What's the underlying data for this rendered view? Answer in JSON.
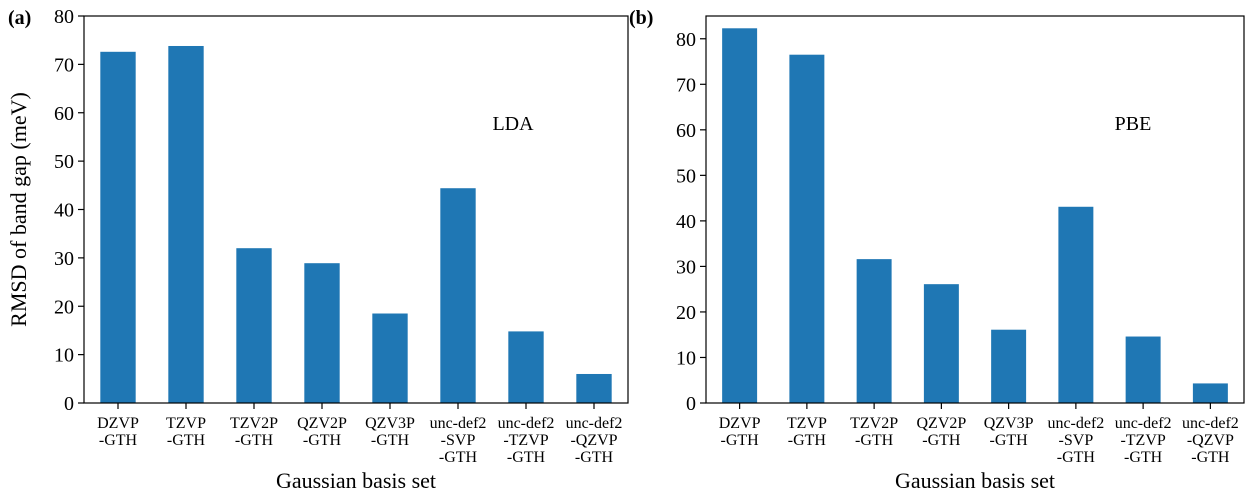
{
  "chart_data": [
    {
      "type": "bar",
      "panel_label": "(a)",
      "annotation": "LDA",
      "categories": [
        [
          "DZVP",
          "-GTH"
        ],
        [
          "TZVP",
          "-GTH"
        ],
        [
          "TZV2P",
          "-GTH"
        ],
        [
          "QZV2P",
          "-GTH"
        ],
        [
          "QZV3P",
          "-GTH"
        ],
        [
          "unc-def2",
          "-SVP",
          "-GTH"
        ],
        [
          "unc-def2",
          "-TZVP",
          "-GTH"
        ],
        [
          "unc-def2",
          "-QZVP",
          "-GTH"
        ]
      ],
      "values": [
        72.6,
        73.8,
        32.0,
        28.9,
        18.5,
        44.4,
        14.8,
        6.0
      ],
      "xlabel": "Gaussian basis set",
      "ylabel": "RMSD of band gap (meV)",
      "ylim": [
        0,
        80
      ],
      "yticks": [
        0,
        10,
        20,
        30,
        40,
        50,
        60,
        70,
        80
      ],
      "bar_color": "#1f77b4",
      "grid": false
    },
    {
      "type": "bar",
      "panel_label": "(b)",
      "annotation": "PBE",
      "categories": [
        [
          "DZVP",
          "-GTH"
        ],
        [
          "TZVP",
          "-GTH"
        ],
        [
          "TZV2P",
          "-GTH"
        ],
        [
          "QZV2P",
          "-GTH"
        ],
        [
          "QZV3P",
          "-GTH"
        ],
        [
          "unc-def2",
          "-SVP",
          "-GTH"
        ],
        [
          "unc-def2",
          "-TZVP",
          "-GTH"
        ],
        [
          "unc-def2",
          "-QZVP",
          "-GTH"
        ]
      ],
      "values": [
        82.3,
        76.5,
        31.6,
        26.1,
        16.1,
        43.1,
        14.6,
        4.3
      ],
      "xlabel": "Gaussian basis set",
      "ylabel": "",
      "ylim": [
        0,
        85
      ],
      "yticks": [
        0,
        10,
        20,
        30,
        40,
        50,
        60,
        70,
        80
      ],
      "bar_color": "#1f77b4",
      "grid": false
    }
  ]
}
